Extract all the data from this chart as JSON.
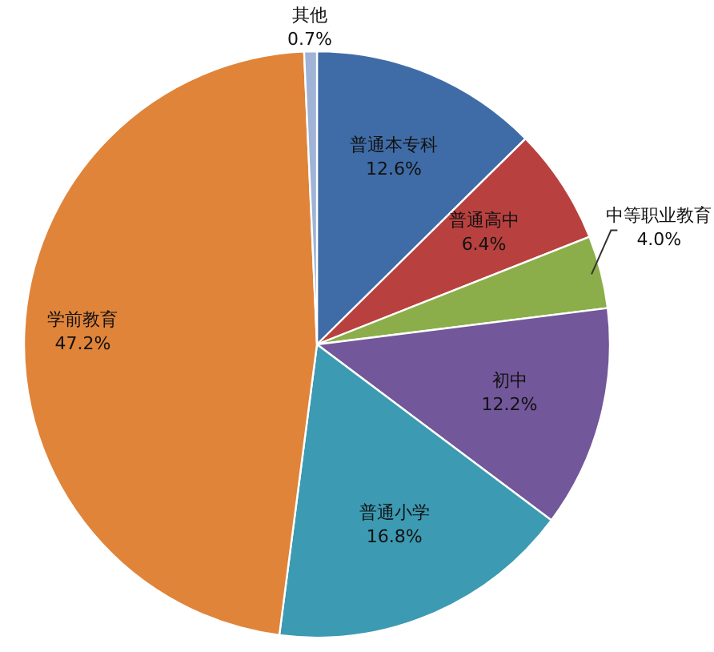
{
  "chart_data": {
    "type": "pie",
    "categories": [
      "普通本专科",
      "普通高中",
      "中等职业教育",
      "初中",
      "普通小学",
      "学前教育",
      "其他"
    ],
    "values": [
      12.6,
      6.4,
      4.0,
      12.2,
      16.8,
      47.2,
      0.7
    ],
    "colors": [
      "#3f6ca6",
      "#b8413f",
      "#8cae4a",
      "#72579a",
      "#3c9ab2",
      "#e0843a",
      "#9fb3d6"
    ],
    "value_labels": [
      "12.6%",
      "6.4%",
      "4.0%",
      "12.2%",
      "16.8%",
      "47.2%",
      "0.7%"
    ]
  }
}
